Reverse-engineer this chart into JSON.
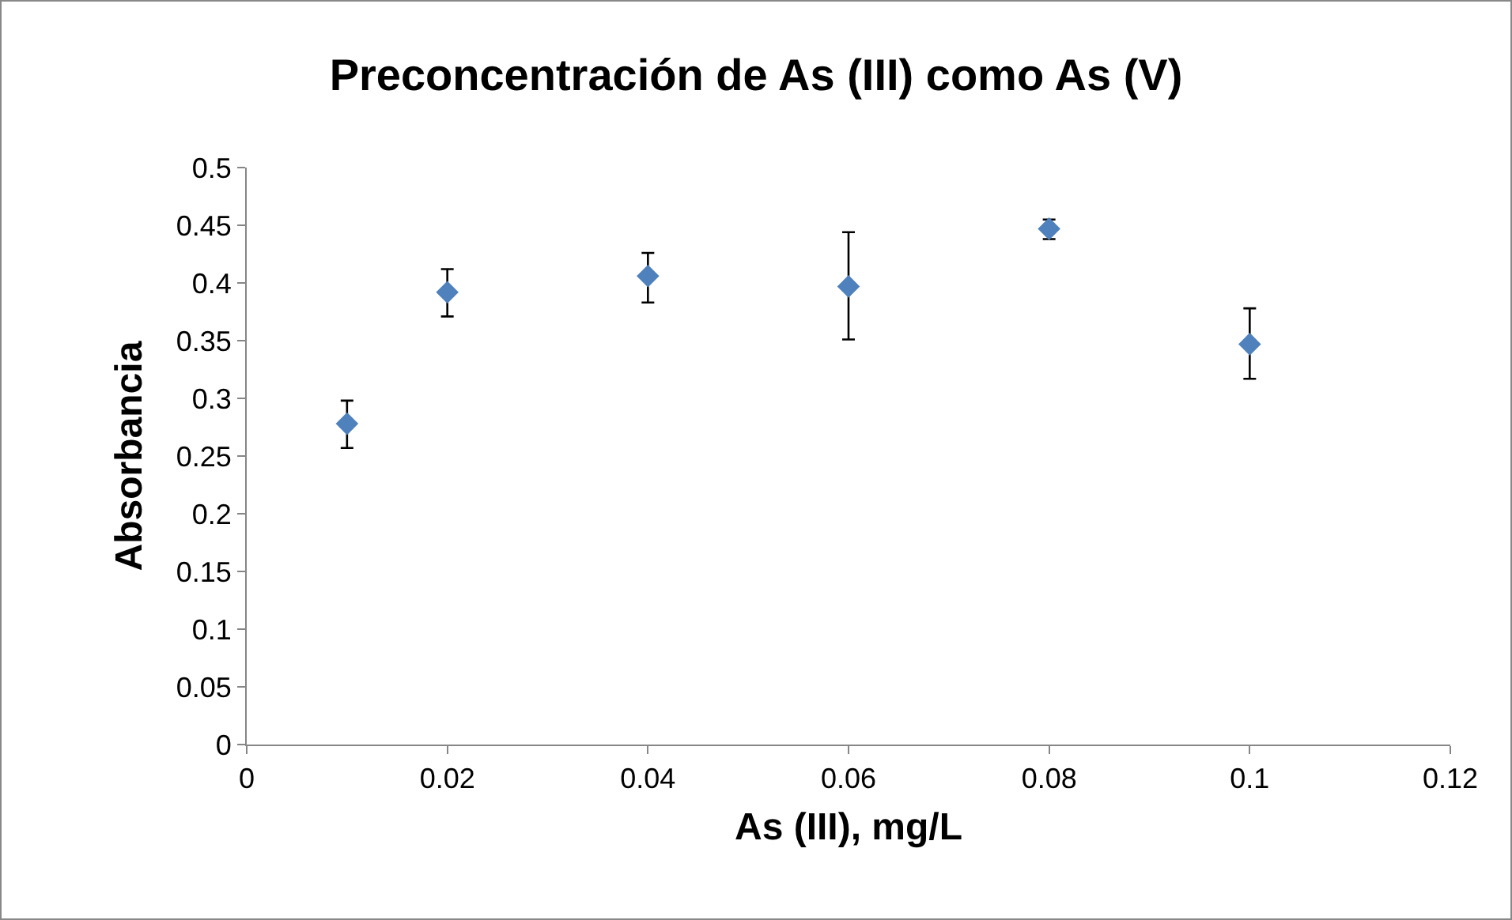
{
  "chart_data": {
    "type": "scatter",
    "title": "Preconcentración de As (III) como As (V)",
    "xlabel": "As (III), mg/L",
    "ylabel": "Absorbancia",
    "x": [
      0.01,
      0.02,
      0.04,
      0.06,
      0.08,
      0.1
    ],
    "series": [
      {
        "color": "#4f81bd",
        "values": [
          0.278,
          0.392,
          0.406,
          0.397,
          0.447,
          0.347
        ],
        "errors": [
          [
            0.257,
            0.298
          ],
          [
            0.371,
            0.412
          ],
          [
            0.383,
            0.426
          ],
          [
            0.351,
            0.444
          ],
          [
            0.438,
            0.455
          ],
          [
            0.317,
            0.378
          ]
        ]
      }
    ],
    "xlim": [
      0,
      0.12
    ],
    "xticks": [
      0,
      0.02,
      0.04,
      0.06,
      0.08,
      0.1,
      0.12
    ],
    "ylim": [
      0,
      0.5
    ],
    "yticks": [
      0,
      0.05,
      0.1,
      0.15,
      0.2,
      0.25,
      0.3,
      0.35,
      0.4,
      0.45,
      0.5
    ],
    "grid": false,
    "marker": "diamond"
  }
}
